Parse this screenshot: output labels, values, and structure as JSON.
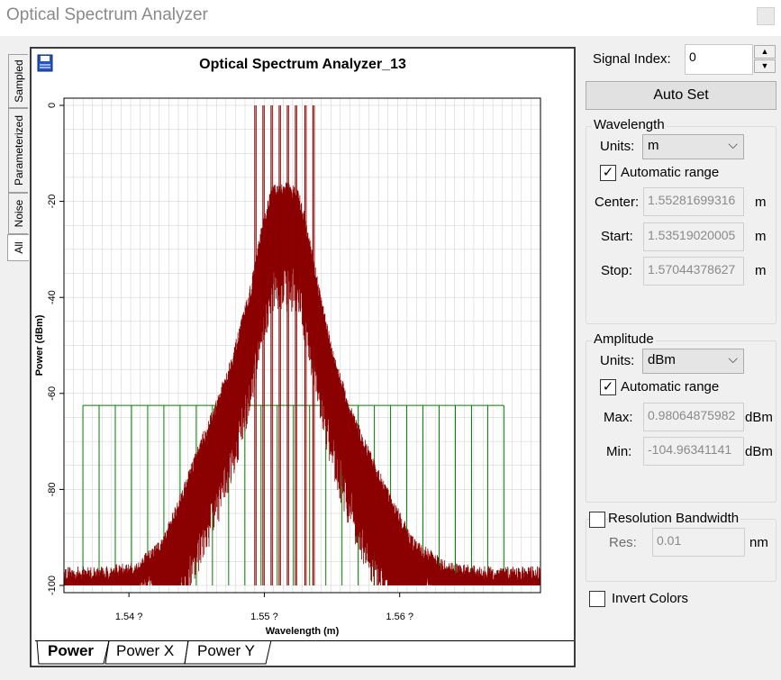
{
  "window": {
    "title": "Optical Spectrum Analyzer"
  },
  "side_tabs": [
    {
      "label": "Sampled"
    },
    {
      "label": "Parameterized"
    },
    {
      "label": "Noise"
    },
    {
      "label": "All"
    }
  ],
  "plot": {
    "title": "Optical Spectrum Analyzer_13"
  },
  "bottom_tabs": [
    {
      "label": "Power"
    },
    {
      "label": "Power X"
    },
    {
      "label": "Power Y"
    }
  ],
  "controls": {
    "signal_index_label": "Signal Index:",
    "signal_index_value": "0",
    "auto_set_label": "Auto Set",
    "wavelength": {
      "legend": "Wavelength",
      "units_label": "Units:",
      "units_value": "m",
      "auto_range_label": "Automatic range",
      "auto_range_checked": true,
      "center_label": "Center:",
      "center_value": "1.55281699316",
      "center_unit": "m",
      "start_label": "Start:",
      "start_value": "1.53519020005",
      "start_unit": "m",
      "stop_label": "Stop:",
      "stop_value": "1.57044378627",
      "stop_unit": "m"
    },
    "amplitude": {
      "legend": "Amplitude",
      "units_label": "Units:",
      "units_value": "dBm",
      "auto_range_label": "Automatic range",
      "auto_range_checked": true,
      "max_label": "Max:",
      "max_value": "0.98064875982",
      "max_unit": "dBm",
      "min_label": "Min:",
      "min_value": "-104.96341141",
      "min_unit": "dBm"
    },
    "resolution": {
      "label": "Resolution Bandwidth",
      "checked": false,
      "res_label": "Res:",
      "res_value": "0.01",
      "res_unit": "nm"
    },
    "invert_colors": {
      "label": "Invert Colors",
      "checked": false
    }
  },
  "chart_data": {
    "type": "line",
    "xlabel": "Wavelength (m)",
    "ylabel": "Power (dBm)",
    "xlim": [
      1.5352,
      1.5704
    ],
    "ylim": [
      -101.5,
      1.5
    ],
    "x_ticks": [
      1.54,
      1.55,
      1.56
    ],
    "x_tick_labels": [
      "1.54 ?",
      "1.55 ?",
      "1.56 ?"
    ],
    "y_ticks": [
      0,
      -20,
      -40,
      -60,
      -80,
      -100
    ],
    "y_tick_labels": [
      "0",
      "-20",
      "-40",
      "-60",
      "-80",
      "-100"
    ],
    "grid": true,
    "colors": {
      "signal": "#8b0000",
      "grid_bars": "#008000",
      "gridline": "#cccccc"
    },
    "series": [
      {
        "role": "signal",
        "x": [
          1.5352,
          1.538,
          1.5405,
          1.5425,
          1.544,
          1.5452,
          1.5465,
          1.5478,
          1.549,
          1.5498,
          1.5505,
          1.551,
          1.5518,
          1.5525,
          1.5532,
          1.554,
          1.555,
          1.5562,
          1.5575,
          1.559,
          1.561,
          1.5635,
          1.566,
          1.5704
        ],
        "y": [
          -99,
          -99,
          -98,
          -93,
          -82,
          -73,
          -64,
          -53,
          -40,
          -28,
          -20,
          -19,
          -19,
          -20,
          -28,
          -40,
          -53,
          -64,
          -73,
          -82,
          -93,
          -98,
          -99,
          -99
        ]
      },
      {
        "role": "peaks",
        "x": [
          1.5493,
          1.5499,
          1.5505,
          1.5511,
          1.5517,
          1.5523,
          1.553,
          1.5536
        ],
        "y": [
          0,
          0,
          0,
          0,
          0,
          0,
          0,
          0
        ]
      },
      {
        "role": "grid_bars",
        "x_start": 1.5366,
        "x_end": 1.5677,
        "count": 26,
        "level": -62.5
      }
    ]
  }
}
